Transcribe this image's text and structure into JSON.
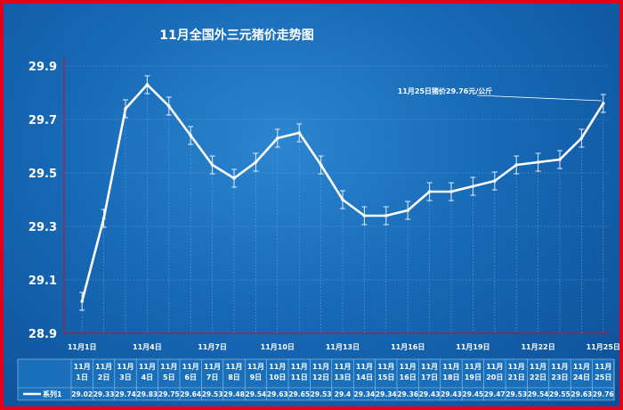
{
  "colors": {
    "background": "#1769b6",
    "frame_border": "#e3001b",
    "line": "#ffffff",
    "grid": "#6aa6dd",
    "axis": "#e3001b"
  },
  "chart_data": {
    "type": "line",
    "title": "11月全国外三元猪价走势图",
    "ylim": [
      28.9,
      29.9
    ],
    "yticks": [
      "28.9",
      "29.1",
      "29.3",
      "29.5",
      "29.7",
      "29.9"
    ],
    "xtick_labels": [
      "11月1日",
      "11月4日",
      "11月7日",
      "11月10日",
      "11月13日",
      "11月16日",
      "11月19日",
      "11月22日",
      "11月25日"
    ],
    "table_labels": [
      [
        "11月",
        "1日"
      ],
      [
        "11月",
        "2日"
      ],
      [
        "11月",
        "3日"
      ],
      [
        "11月",
        "4日"
      ],
      [
        "11月",
        "5日"
      ],
      [
        "11月",
        "6日"
      ],
      [
        "11月",
        "7日"
      ],
      [
        "11月",
        "8日"
      ],
      [
        "11月",
        "9日"
      ],
      [
        "11月",
        "10日"
      ],
      [
        "11月",
        "11日"
      ],
      [
        "11月",
        "12日"
      ],
      [
        "11月",
        "13日"
      ],
      [
        "11月",
        "14日"
      ],
      [
        "11月",
        "15日"
      ],
      [
        "11月",
        "16日"
      ],
      [
        "11月",
        "17日"
      ],
      [
        "11月",
        "18日"
      ],
      [
        "11月",
        "19日"
      ],
      [
        "11月",
        "20日"
      ],
      [
        "11月",
        "21日"
      ],
      [
        "11月",
        "22日"
      ],
      [
        "11月",
        "23日"
      ],
      [
        "11月",
        "24日"
      ],
      [
        "11月",
        "25日"
      ]
    ],
    "series": [
      {
        "name": "系列1",
        "values": [
          29.02,
          29.33,
          29.74,
          29.83,
          29.75,
          29.64,
          29.53,
          29.48,
          29.54,
          29.63,
          29.65,
          29.53,
          29.4,
          29.34,
          29.34,
          29.36,
          29.43,
          29.43,
          29.45,
          29.47,
          29.53,
          29.54,
          29.55,
          29.63,
          29.76
        ]
      }
    ],
    "annotation": "11月25日猪价29.76元/公斤",
    "grid": true
  }
}
